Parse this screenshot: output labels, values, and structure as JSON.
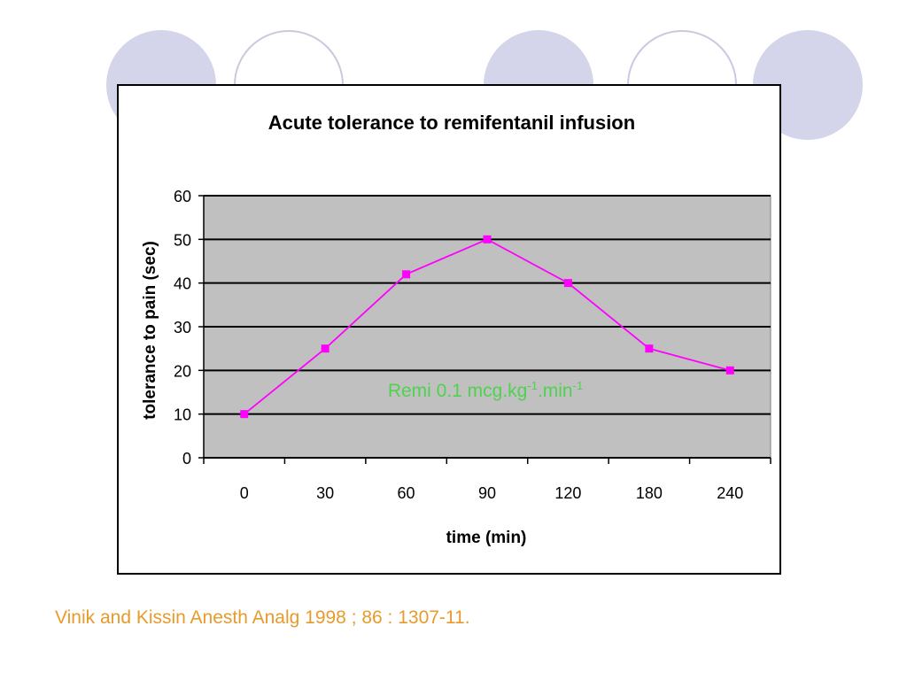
{
  "slide": {
    "citation": "Vinik and Kissin Anesth Analg 1998 ; 86 : 1307-11.",
    "citation_color": "#e89a2c",
    "decoration_color": "#d4d4ea"
  },
  "chart_data": {
    "type": "line",
    "title": "Acute tolerance to remifentanil infusion",
    "xlabel": "time (min)",
    "ylabel": "tolerance to pain (sec)",
    "categories": [
      "0",
      "30",
      "60",
      "90",
      "120",
      "180",
      "240"
    ],
    "series": [
      {
        "values": [
          10,
          25,
          42,
          50,
          40,
          25,
          20
        ],
        "color": "#ff00ff",
        "marker": "square"
      }
    ],
    "ylim": [
      0,
      60
    ],
    "yticks": [
      0,
      10,
      20,
      30,
      40,
      50,
      60
    ],
    "grid": true,
    "plot_background": "#c0c0c0",
    "annotation": {
      "base": "Remi 0.1 mcg.kg",
      "sup1": "-1",
      "middle": ".min",
      "sup2": "-1",
      "color": "#4fd24f"
    }
  }
}
